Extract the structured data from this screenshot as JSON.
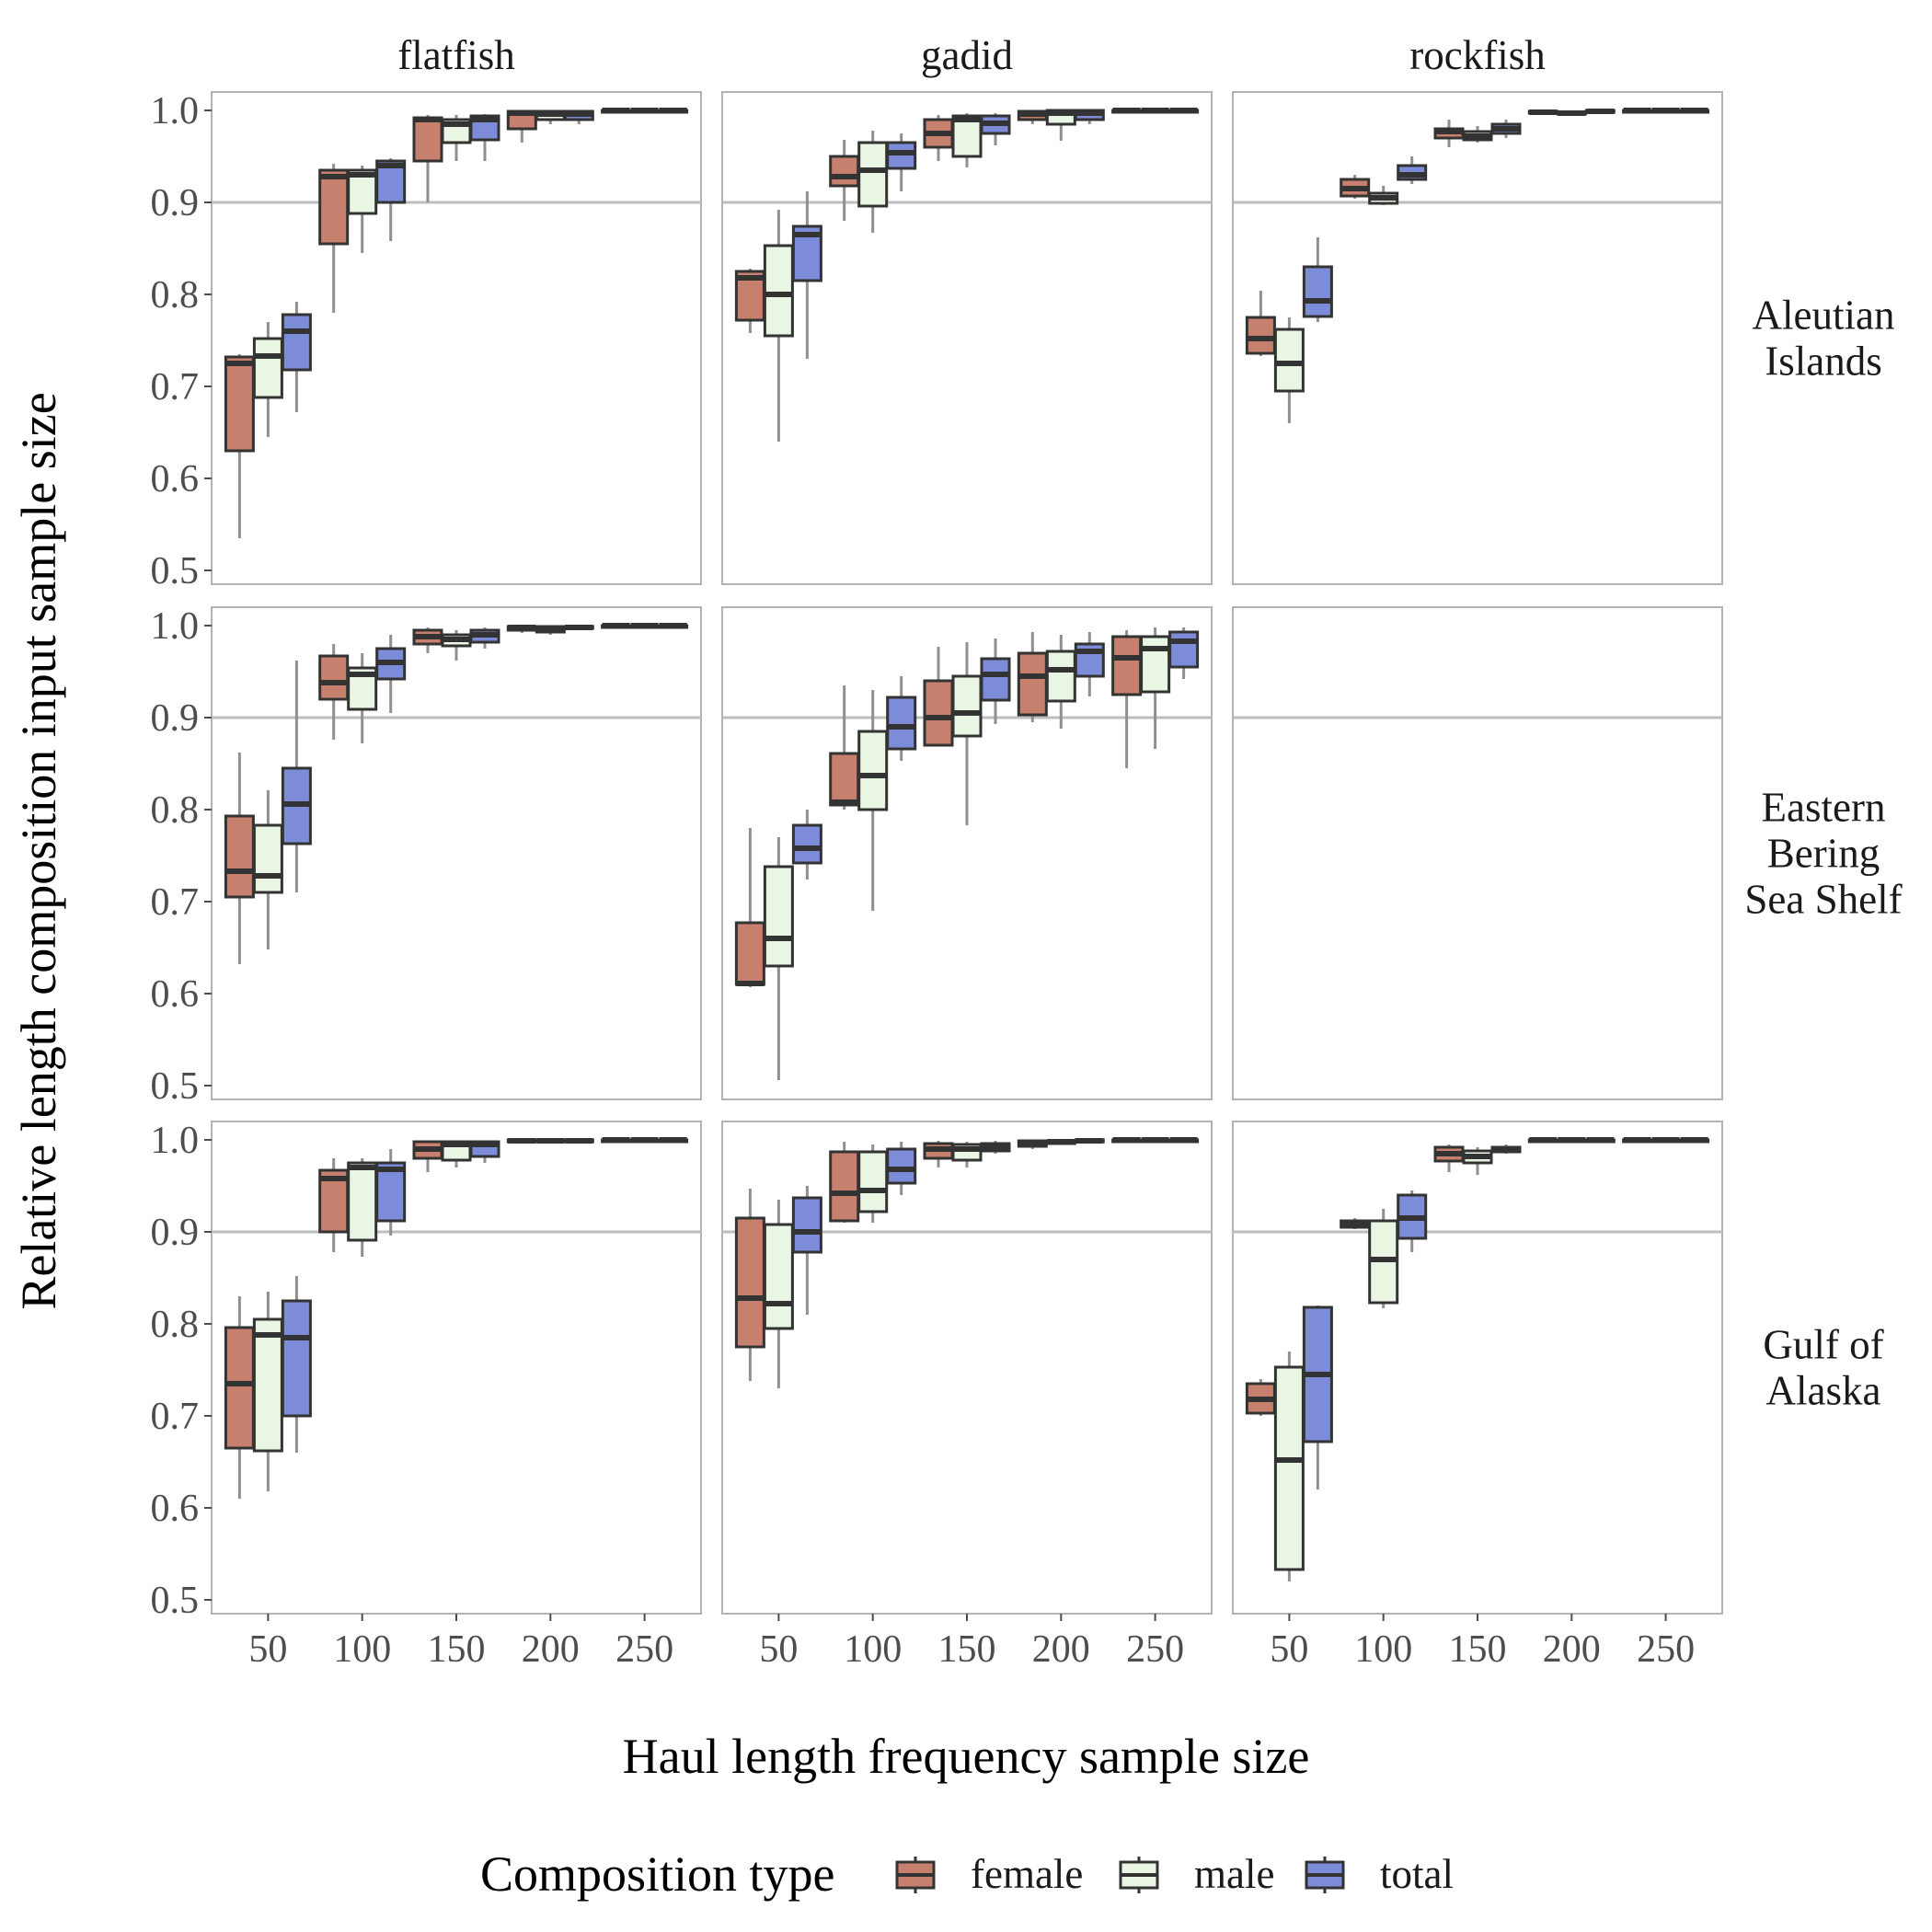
{
  "chart_data": {
    "type": "box",
    "xlabel": "Haul length frequency sample size",
    "ylabel": "Relative length composition input sample size",
    "x_ticks": [
      50,
      100,
      150,
      200,
      250
    ],
    "xlim": [
      20,
      280
    ],
    "y_ticks": [
      "0.5",
      "0.6",
      "0.7",
      "0.8",
      "0.9",
      "1.0"
    ],
    "ylim": [
      0.485,
      1.02
    ],
    "reference_line": 0.9,
    "grid": false,
    "facet_columns": [
      "flatfish",
      "gadid",
      "rockfish"
    ],
    "facet_rows": [
      [
        "Aleutian",
        "Islands"
      ],
      [
        "Eastern",
        "Bering",
        "Sea Shelf"
      ],
      [
        "Gulf of",
        "Alaska"
      ]
    ],
    "legend": {
      "title": "Composition type",
      "position": "bottom",
      "entries": [
        {
          "name": "female",
          "color": "#C8806E"
        },
        {
          "name": "male",
          "color": "#E9F6E4"
        },
        {
          "name": "total",
          "color": "#7C8CD8"
        }
      ]
    },
    "sample_sizes": [
      50,
      100,
      150,
      200,
      250
    ],
    "box_fields": [
      "whisker_low",
      "q1",
      "median",
      "q3",
      "whisker_high"
    ],
    "panels": [
      {
        "column": "flatfish",
        "row": "Aleutian Islands",
        "boxes": {
          "female": [
            [
              0.535,
              0.63,
              0.725,
              0.732,
              0.735
            ],
            [
              0.78,
              0.855,
              0.928,
              0.935,
              0.942
            ],
            [
              0.9,
              0.945,
              0.99,
              0.992,
              0.995
            ],
            [
              0.965,
              0.98,
              0.997,
              0.999,
              1.0
            ],
            [
              0.998,
              0.999,
              1.0,
              1.0,
              1.0
            ]
          ],
          "male": [
            [
              0.645,
              0.688,
              0.733,
              0.752,
              0.77
            ],
            [
              0.845,
              0.888,
              0.93,
              0.935,
              0.94
            ],
            [
              0.945,
              0.965,
              0.985,
              0.99,
              0.995
            ],
            [
              0.985,
              0.99,
              0.996,
              0.999,
              1.0
            ],
            [
              0.998,
              0.999,
              1.0,
              1.0,
              1.0
            ]
          ],
          "total": [
            [
              0.672,
              0.718,
              0.76,
              0.778,
              0.792
            ],
            [
              0.858,
              0.9,
              0.94,
              0.945,
              0.948
            ],
            [
              0.945,
              0.968,
              0.99,
              0.994,
              0.996
            ],
            [
              0.985,
              0.99,
              0.996,
              0.999,
              1.0
            ],
            [
              0.998,
              0.999,
              1.0,
              1.0,
              1.0
            ]
          ]
        }
      },
      {
        "column": "gadid",
        "row": "Aleutian Islands",
        "boxes": {
          "female": [
            [
              0.758,
              0.772,
              0.818,
              0.825,
              0.828
            ],
            [
              0.88,
              0.918,
              0.928,
              0.95,
              0.968
            ],
            [
              0.945,
              0.96,
              0.975,
              0.99,
              0.995
            ],
            [
              0.985,
              0.99,
              0.996,
              0.999,
              1.0
            ],
            [
              0.998,
              0.999,
              1.0,
              1.0,
              1.0
            ]
          ],
          "male": [
            [
              0.64,
              0.755,
              0.8,
              0.853,
              0.892
            ],
            [
              0.867,
              0.896,
              0.935,
              0.965,
              0.978
            ],
            [
              0.938,
              0.95,
              0.99,
              0.994,
              0.997
            ],
            [
              0.967,
              0.985,
              0.997,
              1.0,
              1.0
            ],
            [
              0.998,
              0.999,
              1.0,
              1.0,
              1.0
            ]
          ],
          "total": [
            [
              0.73,
              0.815,
              0.865,
              0.874,
              0.912
            ],
            [
              0.912,
              0.937,
              0.954,
              0.965,
              0.975
            ],
            [
              0.962,
              0.975,
              0.986,
              0.994,
              0.997
            ],
            [
              0.985,
              0.99,
              0.997,
              1.0,
              1.0
            ],
            [
              0.998,
              0.999,
              1.0,
              1.0,
              1.0
            ]
          ]
        }
      },
      {
        "column": "rockfish",
        "row": "Aleutian Islands",
        "boxes": {
          "female": [
            [
              0.733,
              0.736,
              0.752,
              0.775,
              0.804
            ],
            [
              0.904,
              0.907,
              0.915,
              0.925,
              0.93
            ],
            [
              0.96,
              0.97,
              0.977,
              0.98,
              0.99
            ],
            [
              0.997,
              0.997,
              0.998,
              0.999,
              1.0
            ],
            [
              0.998,
              0.999,
              1.0,
              1.0,
              1.0
            ]
          ],
          "male": [
            [
              0.66,
              0.695,
              0.725,
              0.762,
              0.775
            ],
            [
              0.897,
              0.899,
              0.905,
              0.91,
              0.918
            ],
            [
              0.965,
              0.968,
              0.972,
              0.977,
              0.983
            ],
            [
              0.995,
              0.996,
              0.997,
              0.998,
              1.0
            ],
            [
              0.998,
              0.999,
              1.0,
              1.0,
              1.0
            ]
          ],
          "total": [
            [
              0.77,
              0.776,
              0.793,
              0.83,
              0.862
            ],
            [
              0.92,
              0.925,
              0.93,
              0.94,
              0.95
            ],
            [
              0.97,
              0.975,
              0.98,
              0.985,
              0.99
            ],
            [
              0.997,
              0.998,
              0.999,
              1.0,
              1.0
            ],
            [
              0.998,
              0.999,
              1.0,
              1.0,
              1.0
            ]
          ]
        }
      },
      {
        "column": "flatfish",
        "row": "Eastern Bering Sea Shelf",
        "boxes": {
          "female": [
            [
              0.632,
              0.705,
              0.733,
              0.793,
              0.862
            ],
            [
              0.876,
              0.92,
              0.938,
              0.967,
              0.98
            ],
            [
              0.97,
              0.98,
              0.988,
              0.995,
              0.998
            ],
            [
              0.992,
              0.995,
              0.998,
              0.999,
              1.0
            ],
            [
              0.998,
              0.999,
              1.0,
              1.0,
              1.0
            ]
          ],
          "male": [
            [
              0.648,
              0.71,
              0.728,
              0.783,
              0.821
            ],
            [
              0.872,
              0.909,
              0.947,
              0.954,
              0.97
            ],
            [
              0.962,
              0.978,
              0.985,
              0.99,
              0.995
            ],
            [
              0.99,
              0.993,
              0.996,
              0.999,
              1.0
            ],
            [
              0.998,
              0.999,
              1.0,
              1.0,
              1.0
            ]
          ],
          "total": [
            [
              0.71,
              0.763,
              0.806,
              0.845,
              0.962
            ],
            [
              0.905,
              0.942,
              0.96,
              0.975,
              0.99
            ],
            [
              0.975,
              0.982,
              0.99,
              0.995,
              0.998
            ],
            [
              0.995,
              0.997,
              0.998,
              0.999,
              1.0
            ],
            [
              0.998,
              0.999,
              1.0,
              1.0,
              1.0
            ]
          ]
        }
      },
      {
        "column": "gadid",
        "row": "Eastern Bering Sea Shelf",
        "boxes": {
          "female": [
            [
              0.607,
              0.61,
              0.611,
              0.677,
              0.78
            ],
            [
              0.8,
              0.805,
              0.808,
              0.861,
              0.935
            ],
            [
              0.87,
              0.87,
              0.9,
              0.94,
              0.977
            ],
            [
              0.895,
              0.903,
              0.945,
              0.97,
              0.993
            ],
            [
              0.845,
              0.925,
              0.965,
              0.988,
              0.995
            ]
          ],
          "male": [
            [
              0.506,
              0.63,
              0.66,
              0.738,
              0.77
            ],
            [
              0.69,
              0.8,
              0.837,
              0.885,
              0.93
            ],
            [
              0.783,
              0.88,
              0.905,
              0.945,
              0.982
            ],
            [
              0.888,
              0.918,
              0.952,
              0.972,
              0.99
            ],
            [
              0.866,
              0.928,
              0.975,
              0.988,
              0.998
            ]
          ],
          "total": [
            [
              0.724,
              0.742,
              0.758,
              0.783,
              0.8
            ],
            [
              0.853,
              0.866,
              0.89,
              0.922,
              0.945
            ],
            [
              0.893,
              0.919,
              0.947,
              0.964,
              0.986
            ],
            [
              0.923,
              0.945,
              0.972,
              0.98,
              0.993
            ],
            [
              0.942,
              0.955,
              0.983,
              0.993,
              0.998
            ]
          ]
        }
      },
      {
        "column": "rockfish",
        "row": "Eastern Bering Sea Shelf",
        "boxes": {
          "female": [],
          "male": [],
          "total": []
        }
      },
      {
        "column": "flatfish",
        "row": "Gulf of Alaska",
        "boxes": {
          "female": [
            [
              0.61,
              0.665,
              0.735,
              0.796,
              0.83
            ],
            [
              0.878,
              0.9,
              0.958,
              0.967,
              0.98
            ],
            [
              0.965,
              0.98,
              0.99,
              0.998,
              0.999
            ],
            [
              0.997,
              0.998,
              0.999,
              1.0,
              1.0
            ],
            [
              0.998,
              0.999,
              1.0,
              1.0,
              1.0
            ]
          ],
          "male": [
            [
              0.618,
              0.662,
              0.788,
              0.805,
              0.835
            ],
            [
              0.873,
              0.891,
              0.97,
              0.975,
              0.98
            ],
            [
              0.97,
              0.978,
              0.995,
              0.998,
              0.999
            ],
            [
              0.997,
              0.998,
              0.999,
              1.0,
              1.0
            ],
            [
              0.998,
              0.999,
              1.0,
              1.0,
              1.0
            ]
          ],
          "total": [
            [
              0.66,
              0.7,
              0.785,
              0.825,
              0.852
            ],
            [
              0.896,
              0.912,
              0.968,
              0.975,
              0.99
            ],
            [
              0.975,
              0.982,
              0.995,
              0.998,
              0.999
            ],
            [
              0.997,
              0.998,
              0.999,
              1.0,
              1.0
            ],
            [
              0.998,
              0.999,
              1.0,
              1.0,
              1.0
            ]
          ]
        }
      },
      {
        "column": "gadid",
        "row": "Gulf of Alaska",
        "boxes": {
          "female": [
            [
              0.738,
              0.775,
              0.828,
              0.915,
              0.947
            ],
            [
              0.91,
              0.912,
              0.942,
              0.987,
              0.998
            ],
            [
              0.97,
              0.98,
              0.99,
              0.996,
              0.999
            ],
            [
              0.99,
              0.993,
              0.997,
              0.999,
              1.0
            ],
            [
              0.998,
              0.999,
              1.0,
              1.0,
              1.0
            ]
          ],
          "male": [
            [
              0.73,
              0.795,
              0.822,
              0.908,
              0.935
            ],
            [
              0.91,
              0.922,
              0.945,
              0.987,
              0.995
            ],
            [
              0.97,
              0.978,
              0.99,
              0.995,
              0.998
            ],
            [
              0.995,
              0.996,
              0.998,
              0.999,
              1.0
            ],
            [
              0.998,
              0.999,
              1.0,
              1.0,
              1.0
            ]
          ],
          "total": [
            [
              0.81,
              0.878,
              0.9,
              0.937,
              0.95
            ],
            [
              0.94,
              0.953,
              0.968,
              0.99,
              0.998
            ],
            [
              0.985,
              0.988,
              0.992,
              0.996,
              0.999
            ],
            [
              0.997,
              0.998,
              0.999,
              1.0,
              1.0
            ],
            [
              0.998,
              0.999,
              1.0,
              1.0,
              1.0
            ]
          ]
        }
      },
      {
        "column": "rockfish",
        "row": "Gulf of Alaska",
        "boxes": {
          "female": [
            [
              0.7,
              0.703,
              0.718,
              0.735,
              0.74
            ],
            [
              0.903,
              0.905,
              0.908,
              0.912,
              0.915
            ],
            [
              0.965,
              0.977,
              0.985,
              0.992,
              0.995
            ],
            [
              0.998,
              0.999,
              1.0,
              1.0,
              1.0
            ],
            [
              0.998,
              0.999,
              1.0,
              1.0,
              1.0
            ]
          ],
          "male": [
            [
              0.52,
              0.533,
              0.652,
              0.753,
              0.77
            ],
            [
              0.817,
              0.823,
              0.87,
              0.912,
              0.925
            ],
            [
              0.962,
              0.975,
              0.982,
              0.988,
              0.992
            ],
            [
              0.998,
              0.999,
              1.0,
              1.0,
              1.0
            ],
            [
              0.998,
              0.999,
              1.0,
              1.0,
              1.0
            ]
          ],
          "total": [
            [
              0.62,
              0.672,
              0.745,
              0.818,
              0.82
            ],
            [
              0.878,
              0.893,
              0.915,
              0.94,
              0.945
            ],
            [
              0.985,
              0.987,
              0.989,
              0.992,
              0.995
            ],
            [
              0.998,
              0.999,
              1.0,
              1.0,
              1.0
            ],
            [
              0.998,
              0.999,
              1.0,
              1.0,
              1.0
            ]
          ]
        }
      }
    ]
  }
}
